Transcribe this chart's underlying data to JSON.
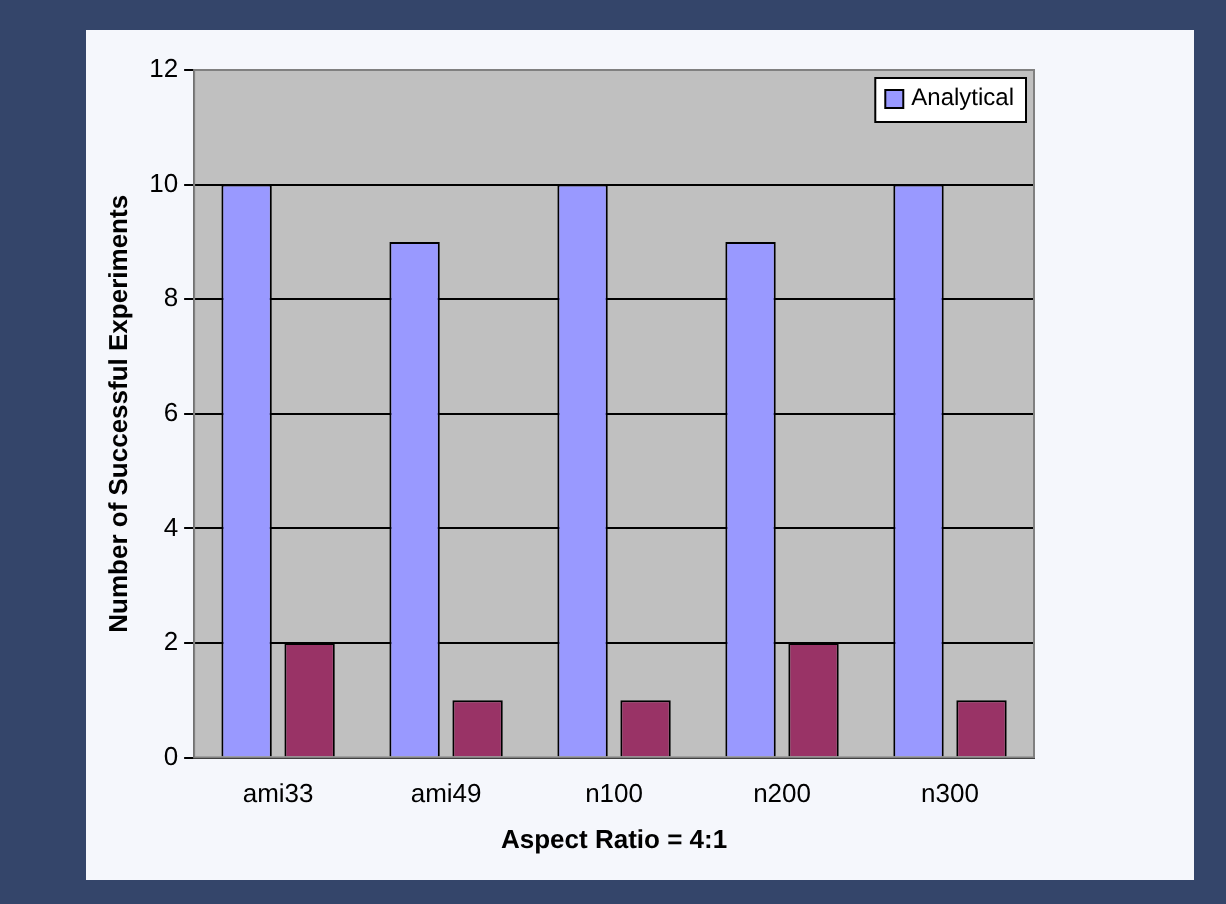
{
  "chart_data": {
    "type": "bar",
    "xlabel": "Aspect Ratio = 4:1",
    "ylabel": "Number of Successful Experiments",
    "categories": [
      "ami33",
      "ami49",
      "n100",
      "n200",
      "n300"
    ],
    "series": [
      {
        "name": "Analytical",
        "color": "#9999ff",
        "values": [
          10,
          9,
          10,
          9,
          10
        ]
      },
      {
        "color": "#993366",
        "values": [
          2,
          1,
          1,
          2,
          1
        ]
      }
    ],
    "ylim": [
      0,
      12
    ],
    "yticks": [
      0,
      2,
      4,
      6,
      8,
      10,
      12
    ],
    "grid": "y",
    "legend": "top right"
  }
}
